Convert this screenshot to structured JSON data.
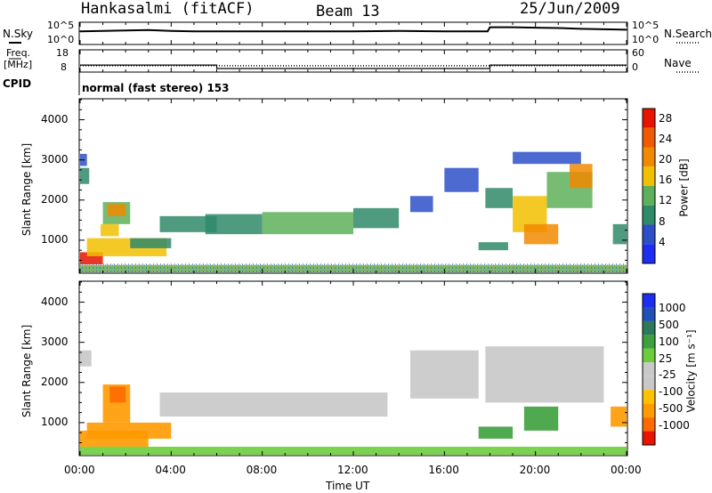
{
  "header": {
    "station": "Hankasalmi (fitACF)",
    "beam": "Beam 13",
    "date": "25/Jun/2009"
  },
  "side_labels": {
    "nsky": "N.Sky",
    "nsky_ticks": [
      "10^5",
      "10^0"
    ],
    "nsearch": "N.Search",
    "nsearch_ticks": [
      "10^5",
      "10^0"
    ],
    "freq_line1": "Freq.",
    "freq_line2": "[MHz]",
    "freq_ticks": [
      "18",
      "8"
    ],
    "nave": "Nave",
    "nave_ticks": [
      "60",
      "0"
    ],
    "cpid": "CPID",
    "mode": "normal (fast stereo) 153"
  },
  "colors": {
    "power": [
      "#1e2ef0",
      "#2d50c8",
      "#2f8a6a",
      "#5fb05a",
      "#f2c000",
      "#f08a00",
      "#f05a00",
      "#e81400"
    ],
    "velocity": [
      "#e81400",
      "#ff6a00",
      "#ff9a00",
      "#ffc000",
      "#c8c8c8",
      "#c8c8c8",
      "#6ccd3c",
      "#3ca03c",
      "#2d7a5a",
      "#2050b8",
      "#1e2ef0"
    ]
  },
  "chart_data": [
    {
      "type": "line",
      "name": "N.Sky / N.Search",
      "x_ticks": [
        "00:00",
        "04:00",
        "08:00",
        "12:00",
        "16:00",
        "20:00",
        "00:00"
      ],
      "xlim_hours": [
        0,
        24
      ],
      "series": [
        {
          "name": "N.Sky",
          "x": [
            0,
            1,
            2,
            3,
            4,
            5,
            6,
            8,
            10,
            12,
            14,
            16,
            17.9,
            18,
            19,
            20,
            21,
            22,
            23,
            24
          ],
          "y": [
            3.0,
            3.1,
            3.2,
            3.3,
            3.1,
            3.0,
            3.0,
            3.0,
            3.0,
            3.0,
            3.1,
            3.0,
            3.0,
            4.0,
            4.0,
            3.9,
            3.8,
            3.6,
            3.5,
            3.4
          ]
        }
      ]
    },
    {
      "type": "line",
      "name": "Freq / Nave",
      "ylim_freq": [
        8,
        18
      ],
      "ylim_nave": [
        0,
        60
      ],
      "series": [
        {
          "name": "Freq.",
          "x": [
            0,
            6,
            6,
            18,
            18,
            24
          ],
          "y": [
            11,
            11,
            9.3,
            9.3,
            11,
            11
          ]
        },
        {
          "name": "Nave",
          "x": [
            0,
            24
          ],
          "y": [
            16,
            16
          ]
        }
      ]
    },
    {
      "type": "heatmap",
      "name": "Power",
      "ylabel": "Slant Range [km]",
      "ylim": [
        200,
        4500
      ],
      "y_ticks": [
        1000,
        2000,
        3000,
        4000
      ],
      "colorbar_label": "Power [dB]",
      "colorbar_ticks": [
        4,
        8,
        12,
        16,
        20,
        24,
        28
      ],
      "colorbar_range": [
        0,
        30
      ],
      "regions": [
        {
          "t0": 0.0,
          "t1": 0.4,
          "r0": 2400,
          "r1": 2800,
          "v": 9
        },
        {
          "t0": 0.0,
          "t1": 0.3,
          "r0": 2850,
          "r1": 3150,
          "v": 6
        },
        {
          "t0": 0.0,
          "t1": 1.0,
          "r0": 400,
          "r1": 700,
          "v": 27
        },
        {
          "t0": 0.3,
          "t1": 3.8,
          "r0": 600,
          "r1": 1050,
          "v": 15
        },
        {
          "t0": 0.9,
          "t1": 1.7,
          "r0": 1100,
          "r1": 1400,
          "v": 18
        },
        {
          "t0": 1.0,
          "t1": 2.2,
          "r0": 1400,
          "r1": 1950,
          "v": 14
        },
        {
          "t0": 1.2,
          "t1": 2.0,
          "r0": 1600,
          "r1": 1900,
          "v": 20
        },
        {
          "t0": 2.2,
          "t1": 4.0,
          "r0": 800,
          "r1": 1050,
          "v": 10
        },
        {
          "t0": 3.5,
          "t1": 6.0,
          "r0": 1200,
          "r1": 1600,
          "v": 8
        },
        {
          "t0": 5.5,
          "t1": 8.0,
          "r0": 1150,
          "r1": 1650,
          "v": 11
        },
        {
          "t0": 8.0,
          "t1": 12.0,
          "r0": 1150,
          "r1": 1700,
          "v": 12
        },
        {
          "t0": 12.0,
          "t1": 14.0,
          "r0": 1300,
          "r1": 1800,
          "v": 10
        },
        {
          "t0": 14.5,
          "t1": 15.5,
          "r0": 1700,
          "r1": 2100,
          "v": 6
        },
        {
          "t0": 16.0,
          "t1": 17.5,
          "r0": 2200,
          "r1": 2800,
          "v": 5
        },
        {
          "t0": 17.5,
          "t1": 18.8,
          "r0": 750,
          "r1": 950,
          "v": 9
        },
        {
          "t0": 17.8,
          "t1": 19.0,
          "r0": 1800,
          "r1": 2300,
          "v": 10
        },
        {
          "t0": 19.0,
          "t1": 20.5,
          "r0": 1200,
          "r1": 2100,
          "v": 16
        },
        {
          "t0": 19.5,
          "t1": 21.0,
          "r0": 900,
          "r1": 1400,
          "v": 22
        },
        {
          "t0": 20.5,
          "t1": 22.5,
          "r0": 1800,
          "r1": 2700,
          "v": 13
        },
        {
          "t0": 21.5,
          "t1": 22.5,
          "r0": 2300,
          "r1": 2900,
          "v": 19
        },
        {
          "t0": 19.0,
          "t1": 22.0,
          "r0": 2900,
          "r1": 3200,
          "v": 6
        },
        {
          "t0": 23.4,
          "t1": 24.0,
          "r0": 900,
          "r1": 1400,
          "v": 10
        },
        {
          "t0": 0.0,
          "t1": 24.0,
          "r0": 200,
          "r1": 380,
          "v": 12
        }
      ]
    },
    {
      "type": "heatmap",
      "name": "Velocity",
      "ylabel": "Slant Range [km]",
      "xlabel": "Time UT",
      "ylim": [
        200,
        4500
      ],
      "y_ticks": [
        1000,
        2000,
        3000,
        4000
      ],
      "colorbar_label": "Velocity [m s^-1]",
      "colorbar_ticks": [
        1000,
        500,
        100,
        25,
        -25,
        -100,
        -500,
        -1000
      ],
      "regions": [
        {
          "t0": 0.0,
          "t1": 0.5,
          "r0": 2400,
          "r1": 2800,
          "v": 0
        },
        {
          "t0": 0.0,
          "t1": 3.0,
          "r0": 400,
          "r1": 800,
          "v": -200
        },
        {
          "t0": 0.3,
          "t1": 4.0,
          "r0": 600,
          "r1": 1000,
          "v": -150
        },
        {
          "t0": 1.0,
          "t1": 2.2,
          "r0": 1000,
          "r1": 1950,
          "v": -400
        },
        {
          "t0": 1.3,
          "t1": 2.0,
          "r0": 1500,
          "r1": 1900,
          "v": -600
        },
        {
          "t0": 3.5,
          "t1": 13.5,
          "r0": 1150,
          "r1": 1750,
          "v": 0
        },
        {
          "t0": 14.5,
          "t1": 17.5,
          "r0": 1600,
          "r1": 2800,
          "v": 0
        },
        {
          "t0": 17.5,
          "t1": 19.0,
          "r0": 600,
          "r1": 900,
          "v": 200
        },
        {
          "t0": 17.8,
          "t1": 23.0,
          "r0": 1500,
          "r1": 2900,
          "v": 0
        },
        {
          "t0": 19.5,
          "t1": 21.0,
          "r0": 800,
          "r1": 1400,
          "v": 400
        },
        {
          "t0": 23.3,
          "t1": 24.0,
          "r0": 900,
          "r1": 1400,
          "v": -300
        },
        {
          "t0": 0.0,
          "t1": 24.0,
          "r0": 200,
          "r1": 400,
          "v": 50
        }
      ]
    }
  ],
  "axis": {
    "xlabel": "Time UT",
    "x_ticks": [
      "00:00",
      "04:00",
      "08:00",
      "12:00",
      "16:00",
      "20:00",
      "00:00"
    ],
    "ylabel": "Slant Range [km]",
    "y_ticks": [
      "1000",
      "2000",
      "3000",
      "4000"
    ],
    "power_label": "Power [dB]",
    "power_ticks": [
      "4",
      "8",
      "12",
      "16",
      "20",
      "24",
      "28"
    ],
    "velocity_label": "Velocity [m s⁻¹]",
    "velocity_ticks": [
      "1000",
      "500",
      "100",
      "25",
      "-25",
      "-100",
      "-500",
      "-1000"
    ]
  }
}
